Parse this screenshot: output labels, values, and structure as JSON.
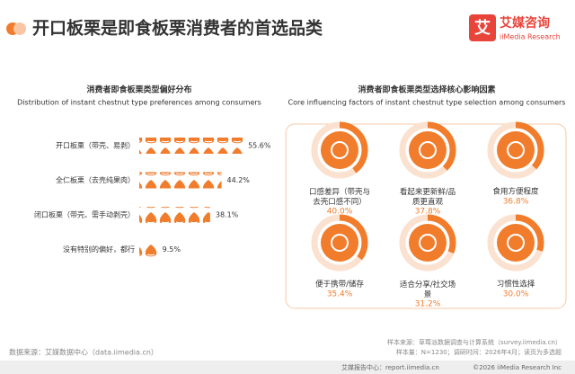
{
  "header": {
    "title": "开口板栗是即食板栗消费者的首选品类",
    "logo_cn": "艾媒咨询",
    "logo_en": "iiMedia Research"
  },
  "chart_data": [
    {
      "type": "pictogram",
      "title": "消费者即食板栗类型偏好分布",
      "subtitle": "Distribution of instant chestnut type preferences among consumers",
      "categories": [
        "开口板栗（带壳、易剥）",
        "全仁板栗（去壳纯果肉）",
        "闭口板栗（带壳、需手动剥壳）",
        "没有特别的偏好，都行"
      ],
      "values": [
        55.6,
        44.2,
        38.1,
        9.5
      ],
      "value_labels": [
        "55.6%",
        "44.2%",
        "38.1%",
        "9.5%"
      ],
      "color": "#f07c2c"
    },
    {
      "type": "donut",
      "title": "消费者即食板栗类型选择核心影响因素",
      "subtitle": "Core influencing factors of instant chestnut type selection among  consumers",
      "categories": [
        "口感差异（带壳与去壳口感不同）",
        "看起来更新鲜/品质更直观",
        "食用方便程度",
        "便于携带/储存",
        "适合分享/社交场景",
        "习惯性选择"
      ],
      "values": [
        40.0,
        37.8,
        36.8,
        35.4,
        31.2,
        30.0
      ],
      "value_labels": [
        "40.0%",
        "37.8%",
        "36.8%",
        "35.4%",
        "31.2%",
        "30.0%"
      ],
      "color": "#f07c2c"
    }
  ],
  "footer": {
    "source": "数据来源：艾媒数据中心（data.iimedia.cn）",
    "sample_source": "样本来源：草莓派数据调查与计算系统（survey.iimedia.cn）",
    "sample_info": "样本量：N=1230；调研时间：2026年4月；读页为多选题",
    "report_center": "艾媒报告中心：report.iimedia.cn",
    "copyright": "©2026  iiMedia Research  Inc"
  }
}
